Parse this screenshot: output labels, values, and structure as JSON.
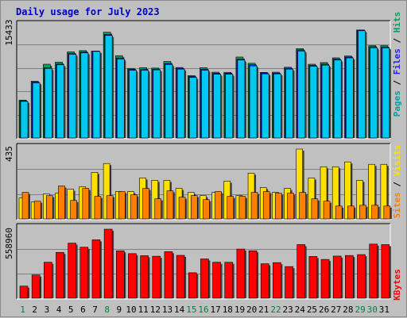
{
  "title": "Daily usage for July 2023",
  "colors": {
    "background": "#c0c0c0",
    "title": "#0000c0",
    "pages": "#00a0a0",
    "files": "#2020ff",
    "hits": "#00a060",
    "sites": "#ff8000",
    "visits": "#ffe000",
    "kbytes": "#ff0000",
    "weekday_label": "#000000",
    "weekend_label": "#008040"
  },
  "chart_data": [
    {
      "type": "bar",
      "panel": "hits-files-pages",
      "ytick_label": "15433",
      "ylim": [
        0,
        15433
      ],
      "legend": [
        "Pages",
        "Files",
        "Hits"
      ],
      "categories": [
        "1",
        "2",
        "3",
        "4",
        "5",
        "6",
        "7",
        "8",
        "9",
        "10",
        "11",
        "12",
        "13",
        "14",
        "15",
        "16",
        "17",
        "18",
        "19",
        "20",
        "21",
        "22",
        "23",
        "24",
        "25",
        "26",
        "27",
        "28",
        "29",
        "30",
        "31"
      ],
      "weekend_days": [
        1,
        8,
        15,
        16,
        22,
        29,
        30
      ],
      "series": [
        {
          "name": "Hits",
          "values": [
            5230,
            7840,
            10180,
            10470,
            11890,
            12060,
            12000,
            14600,
            11360,
            9610,
            9710,
            9650,
            10560,
            9730,
            8610,
            9710,
            9080,
            9060,
            11170,
            10310,
            9050,
            9080,
            9760,
            12330,
            10180,
            10410,
            11060,
            11320,
            14900,
            12740,
            12740
          ]
        },
        {
          "name": "Files",
          "values": [
            5120,
            7700,
            9700,
            10200,
            11680,
            11880,
            12000,
            14300,
            11040,
            9480,
            9460,
            9510,
            10270,
            9620,
            8480,
            9490,
            8930,
            8940,
            10870,
            10100,
            8980,
            8950,
            9620,
            12150,
            10020,
            10190,
            10880,
            11170,
            14900,
            12600,
            12560
          ]
        },
        {
          "name": "Pages",
          "values": [
            5050,
            7600,
            9600,
            10100,
            11550,
            11750,
            11950,
            14150,
            10900,
            9350,
            9350,
            9400,
            10150,
            9500,
            8350,
            9350,
            8800,
            8800,
            10750,
            9950,
            8850,
            8850,
            9500,
            12000,
            9900,
            10050,
            10750,
            11050,
            14800,
            12450,
            12450
          ]
        }
      ]
    },
    {
      "type": "bar",
      "panel": "visits-sites",
      "ytick_label": "435",
      "ylim": [
        0,
        435
      ],
      "legend": [
        "Sites",
        "Visits"
      ],
      "categories": [
        "1",
        "2",
        "3",
        "4",
        "5",
        "6",
        "7",
        "8",
        "9",
        "10",
        "11",
        "12",
        "13",
        "14",
        "15",
        "16",
        "17",
        "18",
        "19",
        "20",
        "21",
        "22",
        "23",
        "24",
        "25",
        "26",
        "27",
        "28",
        "29",
        "30",
        "31"
      ],
      "series": [
        {
          "name": "Visits",
          "values": [
            130,
            105,
            155,
            160,
            185,
            200,
            290,
            345,
            170,
            170,
            255,
            240,
            240,
            190,
            165,
            145,
            165,
            235,
            145,
            285,
            195,
            165,
            190,
            435,
            255,
            325,
            325,
            355,
            240,
            340,
            340
          ]
        },
        {
          "name": "Sites",
          "values": [
            165,
            110,
            145,
            205,
            115,
            190,
            140,
            145,
            170,
            150,
            190,
            125,
            175,
            135,
            145,
            120,
            170,
            140,
            140,
            165,
            170,
            160,
            160,
            165,
            125,
            110,
            80,
            80,
            85,
            85,
            80
          ]
        }
      ]
    },
    {
      "type": "bar",
      "panel": "kbytes",
      "ytick_label": "558960",
      "ylim": [
        0,
        558960
      ],
      "legend": [
        "KBytes"
      ],
      "categories": [
        "1",
        "2",
        "3",
        "4",
        "5",
        "6",
        "7",
        "8",
        "9",
        "10",
        "11",
        "12",
        "13",
        "14",
        "15",
        "16",
        "17",
        "18",
        "19",
        "20",
        "21",
        "22",
        "23",
        "24",
        "25",
        "26",
        "27",
        "28",
        "29",
        "30",
        "31"
      ],
      "series": [
        {
          "name": "KBytes",
          "values": [
            98000,
            188000,
            291000,
            371000,
            446000,
            413000,
            473000,
            558960,
            384000,
            361000,
            344000,
            340000,
            377000,
            347000,
            206000,
            318000,
            291000,
            291000,
            398000,
            384000,
            279000,
            288000,
            256000,
            434000,
            338000,
            314000,
            341000,
            346000,
            353000,
            438000,
            434000
          ]
        }
      ]
    }
  ]
}
